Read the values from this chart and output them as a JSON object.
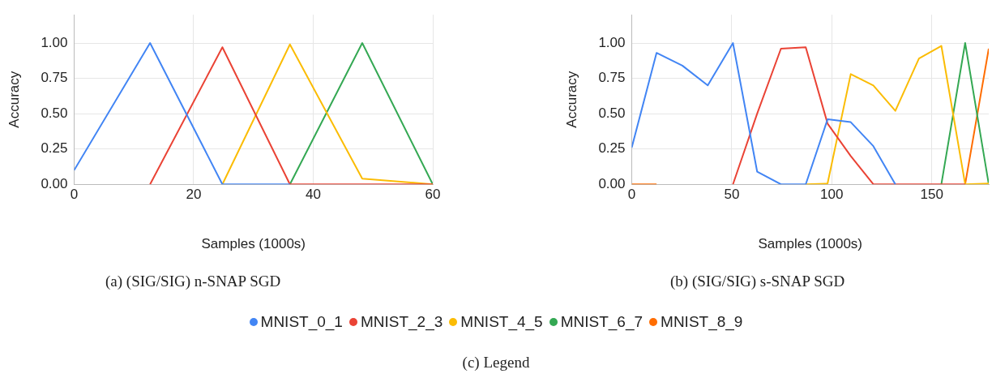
{
  "chart_data": [
    {
      "type": "line",
      "xlabel": "Samples (1000s)",
      "ylabel": "Accuracy",
      "annotations": [
        "(a) (SIG/SIG) n-SNAP SGD"
      ],
      "x": [
        0,
        12.7,
        24.8,
        36.1,
        48.2,
        60
      ],
      "series": [
        {
          "color": "#4285f4",
          "values": [
            0.1,
            1.0,
            0,
            0,
            null,
            null
          ]
        },
        {
          "color": "#ea4335",
          "values": [
            null,
            0,
            0.97,
            0,
            0,
            0
          ]
        },
        {
          "color": "#fbbc04",
          "values": [
            null,
            null,
            0,
            0.99,
            0.04,
            0
          ]
        },
        {
          "color": "#34a853",
          "values": [
            null,
            null,
            null,
            0,
            1.0,
            0
          ]
        }
      ],
      "xlim": [
        0,
        60
      ],
      "xticks": [
        0,
        20,
        40,
        60
      ],
      "ylim": [
        0,
        1.2
      ],
      "yticks": [
        {
          "value": 0,
          "label": "0.00"
        },
        {
          "value": 0.25,
          "label": "0.25"
        },
        {
          "value": 0.5,
          "label": "0.50"
        },
        {
          "value": 0.75,
          "label": "0.75"
        },
        {
          "value": 1,
          "label": "1.00"
        }
      ],
      "grid": true,
      "marker": "none",
      "legend": false
    },
    {
      "type": "line",
      "xlabel": "Samples (1000s)",
      "ylabel": "Accuracy",
      "annotations": [
        "(b) (SIG/SIG) s-SNAP SGD",
        "(c) Legend"
      ],
      "x": [
        0,
        12.4,
        25.3,
        38,
        50.6,
        62.7,
        74.6,
        87,
        97.9,
        109.5,
        120.8,
        131.8,
        143.6,
        154.8,
        166.7,
        178.5
      ],
      "series": [
        {
          "name": "MNIST_0_1",
          "color": "#4285f4",
          "values": [
            0.26,
            0.93,
            0.84,
            0.7,
            1.0,
            0.09,
            0,
            0,
            0.46,
            0.44,
            0.27,
            0,
            null,
            null,
            null,
            null
          ]
        },
        {
          "name": "MNIST_2_3",
          "color": "#ea4335",
          "values": [
            null,
            null,
            null,
            null,
            0,
            0.5,
            0.96,
            0.97,
            0.43,
            0.2,
            0,
            0,
            0,
            0,
            0,
            null
          ]
        },
        {
          "name": "MNIST_4_5",
          "color": "#fbbc04",
          "values": [
            null,
            null,
            null,
            null,
            null,
            null,
            null,
            0,
            0.005,
            0.78,
            0.7,
            0.52,
            0.89,
            0.98,
            0,
            0.005
          ]
        },
        {
          "name": "MNIST_6_7",
          "color": "#34a853",
          "values": [
            null,
            null,
            null,
            null,
            null,
            null,
            null,
            null,
            null,
            null,
            null,
            null,
            null,
            0,
            1.0,
            0
          ]
        },
        {
          "name": "MNIST_8_9",
          "color": "#ff6d01",
          "values": [
            0,
            0,
            null,
            null,
            null,
            null,
            null,
            null,
            null,
            null,
            null,
            null,
            null,
            null,
            0,
            0.96
          ]
        }
      ],
      "xlim": [
        0,
        178.5
      ],
      "xticks": [
        0,
        50,
        100,
        150
      ],
      "ylim": [
        0,
        1.2
      ],
      "yticks": [
        {
          "value": 0,
          "label": "0.00"
        },
        {
          "value": 0.25,
          "label": "0.25"
        },
        {
          "value": 0.5,
          "label": "0.50"
        },
        {
          "value": 0.75,
          "label": "0.75"
        },
        {
          "value": 1,
          "label": "1.00"
        }
      ],
      "grid": true,
      "marker": "none",
      "legend": "bottom"
    }
  ]
}
